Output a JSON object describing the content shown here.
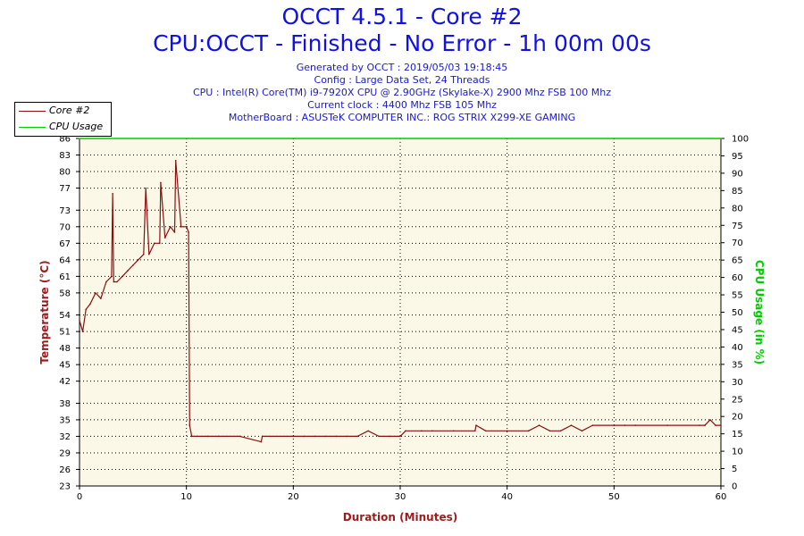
{
  "header": {
    "title_line1": "OCCT 4.5.1 - Core #2",
    "title_line2": "CPU:OCCT - Finished - No Error - 1h 00m 00s",
    "generated": "Generated by OCCT : 2019/05/03 19:18:45",
    "config": "Config : Large Data Set, 24 Threads",
    "cpu": "CPU : Intel(R) Core(TM) i9-7920X CPU @ 2.90GHz (Skylake-X) 2900 Mhz FSB 100 Mhz",
    "clock": "Current clock : 4400 Mhz FSB 105 Mhz",
    "motherboard": "MotherBoard : ASUSTeK COMPUTER INC.: ROG STRIX X299-XE GAMING"
  },
  "legend": [
    {
      "label": "Core #2",
      "color": "#8b0f0f"
    },
    {
      "label": "CPU Usage",
      "color": "#00cc00"
    }
  ],
  "colors": {
    "temperature": "#8b0f0f",
    "cpu_usage": "#00cc00",
    "plot_bg": "#fcf8e8",
    "title": "#1010e8",
    "axis_label_left": "#9b1c1c",
    "axis_label_right": "#00cc00"
  },
  "chart_data": {
    "type": "line",
    "xlabel": "Duration (Minutes)",
    "ylabel": "Temperature (°C)",
    "y2label": "CPU Usage (in %)",
    "xlim": [
      0,
      60
    ],
    "ylim": [
      23,
      86
    ],
    "y2lim": [
      0,
      100
    ],
    "x_ticks": [
      0,
      10,
      20,
      30,
      40,
      50,
      60
    ],
    "y_ticks": [
      23,
      26,
      29,
      32,
      35,
      38,
      42,
      45,
      48,
      51,
      54,
      58,
      61,
      64,
      67,
      70,
      73,
      77,
      80,
      83,
      86
    ],
    "y2_ticks": [
      0,
      5,
      10,
      15,
      20,
      25,
      30,
      35,
      40,
      45,
      50,
      55,
      60,
      65,
      70,
      75,
      80,
      85,
      90,
      95,
      100
    ],
    "grid": true,
    "legend_position": "top-left",
    "series": [
      {
        "name": "Core #2",
        "axis": "left",
        "x": [
          0,
          0.3,
          0.6,
          1,
          1.5,
          2,
          2.5,
          3,
          3.1,
          3.2,
          3.5,
          4,
          4.5,
          5,
          5.5,
          6,
          6.2,
          6.5,
          7,
          7.5,
          7.6,
          8,
          8.5,
          8.9,
          9,
          9.5,
          10,
          10.2,
          10.3,
          10.5,
          11,
          12,
          13,
          15,
          17,
          17.1,
          20,
          21,
          22,
          23,
          24,
          25,
          26,
          27,
          28,
          29,
          30,
          30.5,
          32,
          33,
          35,
          37,
          37.1,
          38,
          40,
          42,
          43,
          44,
          45,
          46,
          47,
          48,
          50,
          51,
          52,
          55,
          58,
          58.5,
          59,
          59.5,
          60
        ],
        "values": [
          53,
          51,
          55,
          56,
          58,
          57,
          60,
          61,
          76,
          60,
          60,
          61,
          62,
          63,
          64,
          65,
          77,
          65,
          67,
          67,
          78,
          68,
          70,
          69,
          82,
          70,
          70,
          69,
          34,
          32,
          32,
          32,
          32,
          32,
          31,
          32,
          32,
          32,
          32,
          32,
          32,
          32,
          32,
          33,
          32,
          32,
          32,
          33,
          33,
          33,
          33,
          33,
          34,
          33,
          33,
          33,
          34,
          33,
          33,
          34,
          33,
          34,
          34,
          34,
          34,
          34,
          34,
          34,
          35,
          34,
          34
        ]
      },
      {
        "name": "CPU Usage",
        "axis": "right",
        "x": [
          0,
          60
        ],
        "values": [
          100,
          100
        ]
      }
    ]
  }
}
